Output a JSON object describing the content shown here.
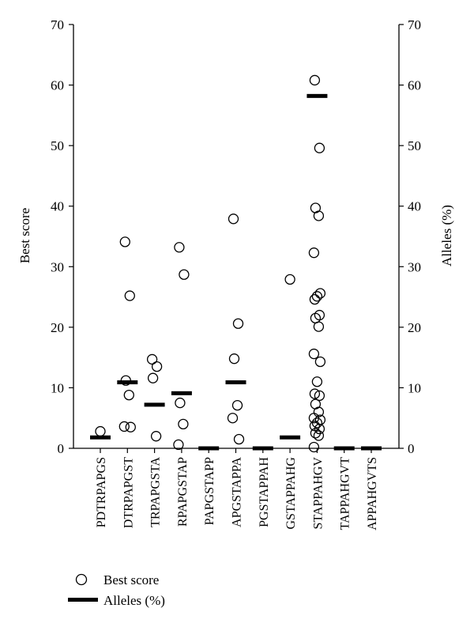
{
  "chart_data": {
    "type": "scatter",
    "categories": [
      "PDTRPAPGS",
      "DTRPAPGST",
      "TRPAPGSTA",
      "RPAPGSTAP",
      "PAPGSTAPP",
      "APGSTAPPA",
      "PGSTAPPAH",
      "GSTAPPAHG",
      "STAPPAHGV",
      "TAPPAHGVT",
      "APPAHGVTS"
    ],
    "ylabel_left": "Best score",
    "ylabel_right": "Alleles (%)",
    "ylim_left": [
      0,
      70
    ],
    "ylim_right": [
      0,
      70
    ],
    "yticks": [
      0,
      10,
      20,
      30,
      40,
      50,
      60,
      70
    ],
    "series": [
      {
        "name": "Best score",
        "marker": "open-circle",
        "points": [
          {
            "category": "PDTRPAPGS",
            "values": [
              2.8
            ]
          },
          {
            "category": "DTRPAPGST",
            "values": [
              34.1,
              25.2,
              11.2,
              8.8,
              3.6,
              3.5
            ]
          },
          {
            "category": "TRPAPGSTA",
            "values": [
              14.7,
              13.5,
              11.6,
              2.0
            ]
          },
          {
            "category": "RPAPGSTAP",
            "values": [
              33.2,
              28.7,
              7.5,
              4.0,
              0.6
            ]
          },
          {
            "category": "PAPGSTAPP",
            "values": []
          },
          {
            "category": "APGSTAPPA",
            "values": [
              37.9,
              20.6,
              14.8,
              7.1,
              5.0,
              1.5
            ]
          },
          {
            "category": "PGSTAPPAH",
            "values": []
          },
          {
            "category": "GSTAPPAHG",
            "values": [
              27.9
            ]
          },
          {
            "category": "STAPPAHGV",
            "values": [
              60.8,
              49.6,
              39.7,
              38.4,
              32.3,
              25.6,
              25.1,
              24.6,
              22.0,
              21.5,
              20.1,
              15.6,
              14.3,
              11.0,
              9.0,
              8.7,
              7.3,
              6.0,
              5.0,
              4.7,
              4.2,
              3.7,
              3.2,
              2.5,
              2.1,
              0.2
            ]
          },
          {
            "category": "TAPPAHGVT",
            "values": []
          },
          {
            "category": "APPAHGVTS",
            "values": []
          }
        ]
      },
      {
        "name": "Alleles (%)",
        "marker": "bar-dash",
        "values": [
          1.8,
          10.9,
          7.2,
          9.1,
          0,
          10.9,
          0,
          1.8,
          58.2,
          0,
          0
        ]
      }
    ],
    "legend": {
      "position": "bottom-left",
      "entries": [
        "Best score",
        "Alleles (%)"
      ]
    },
    "grid": false
  }
}
